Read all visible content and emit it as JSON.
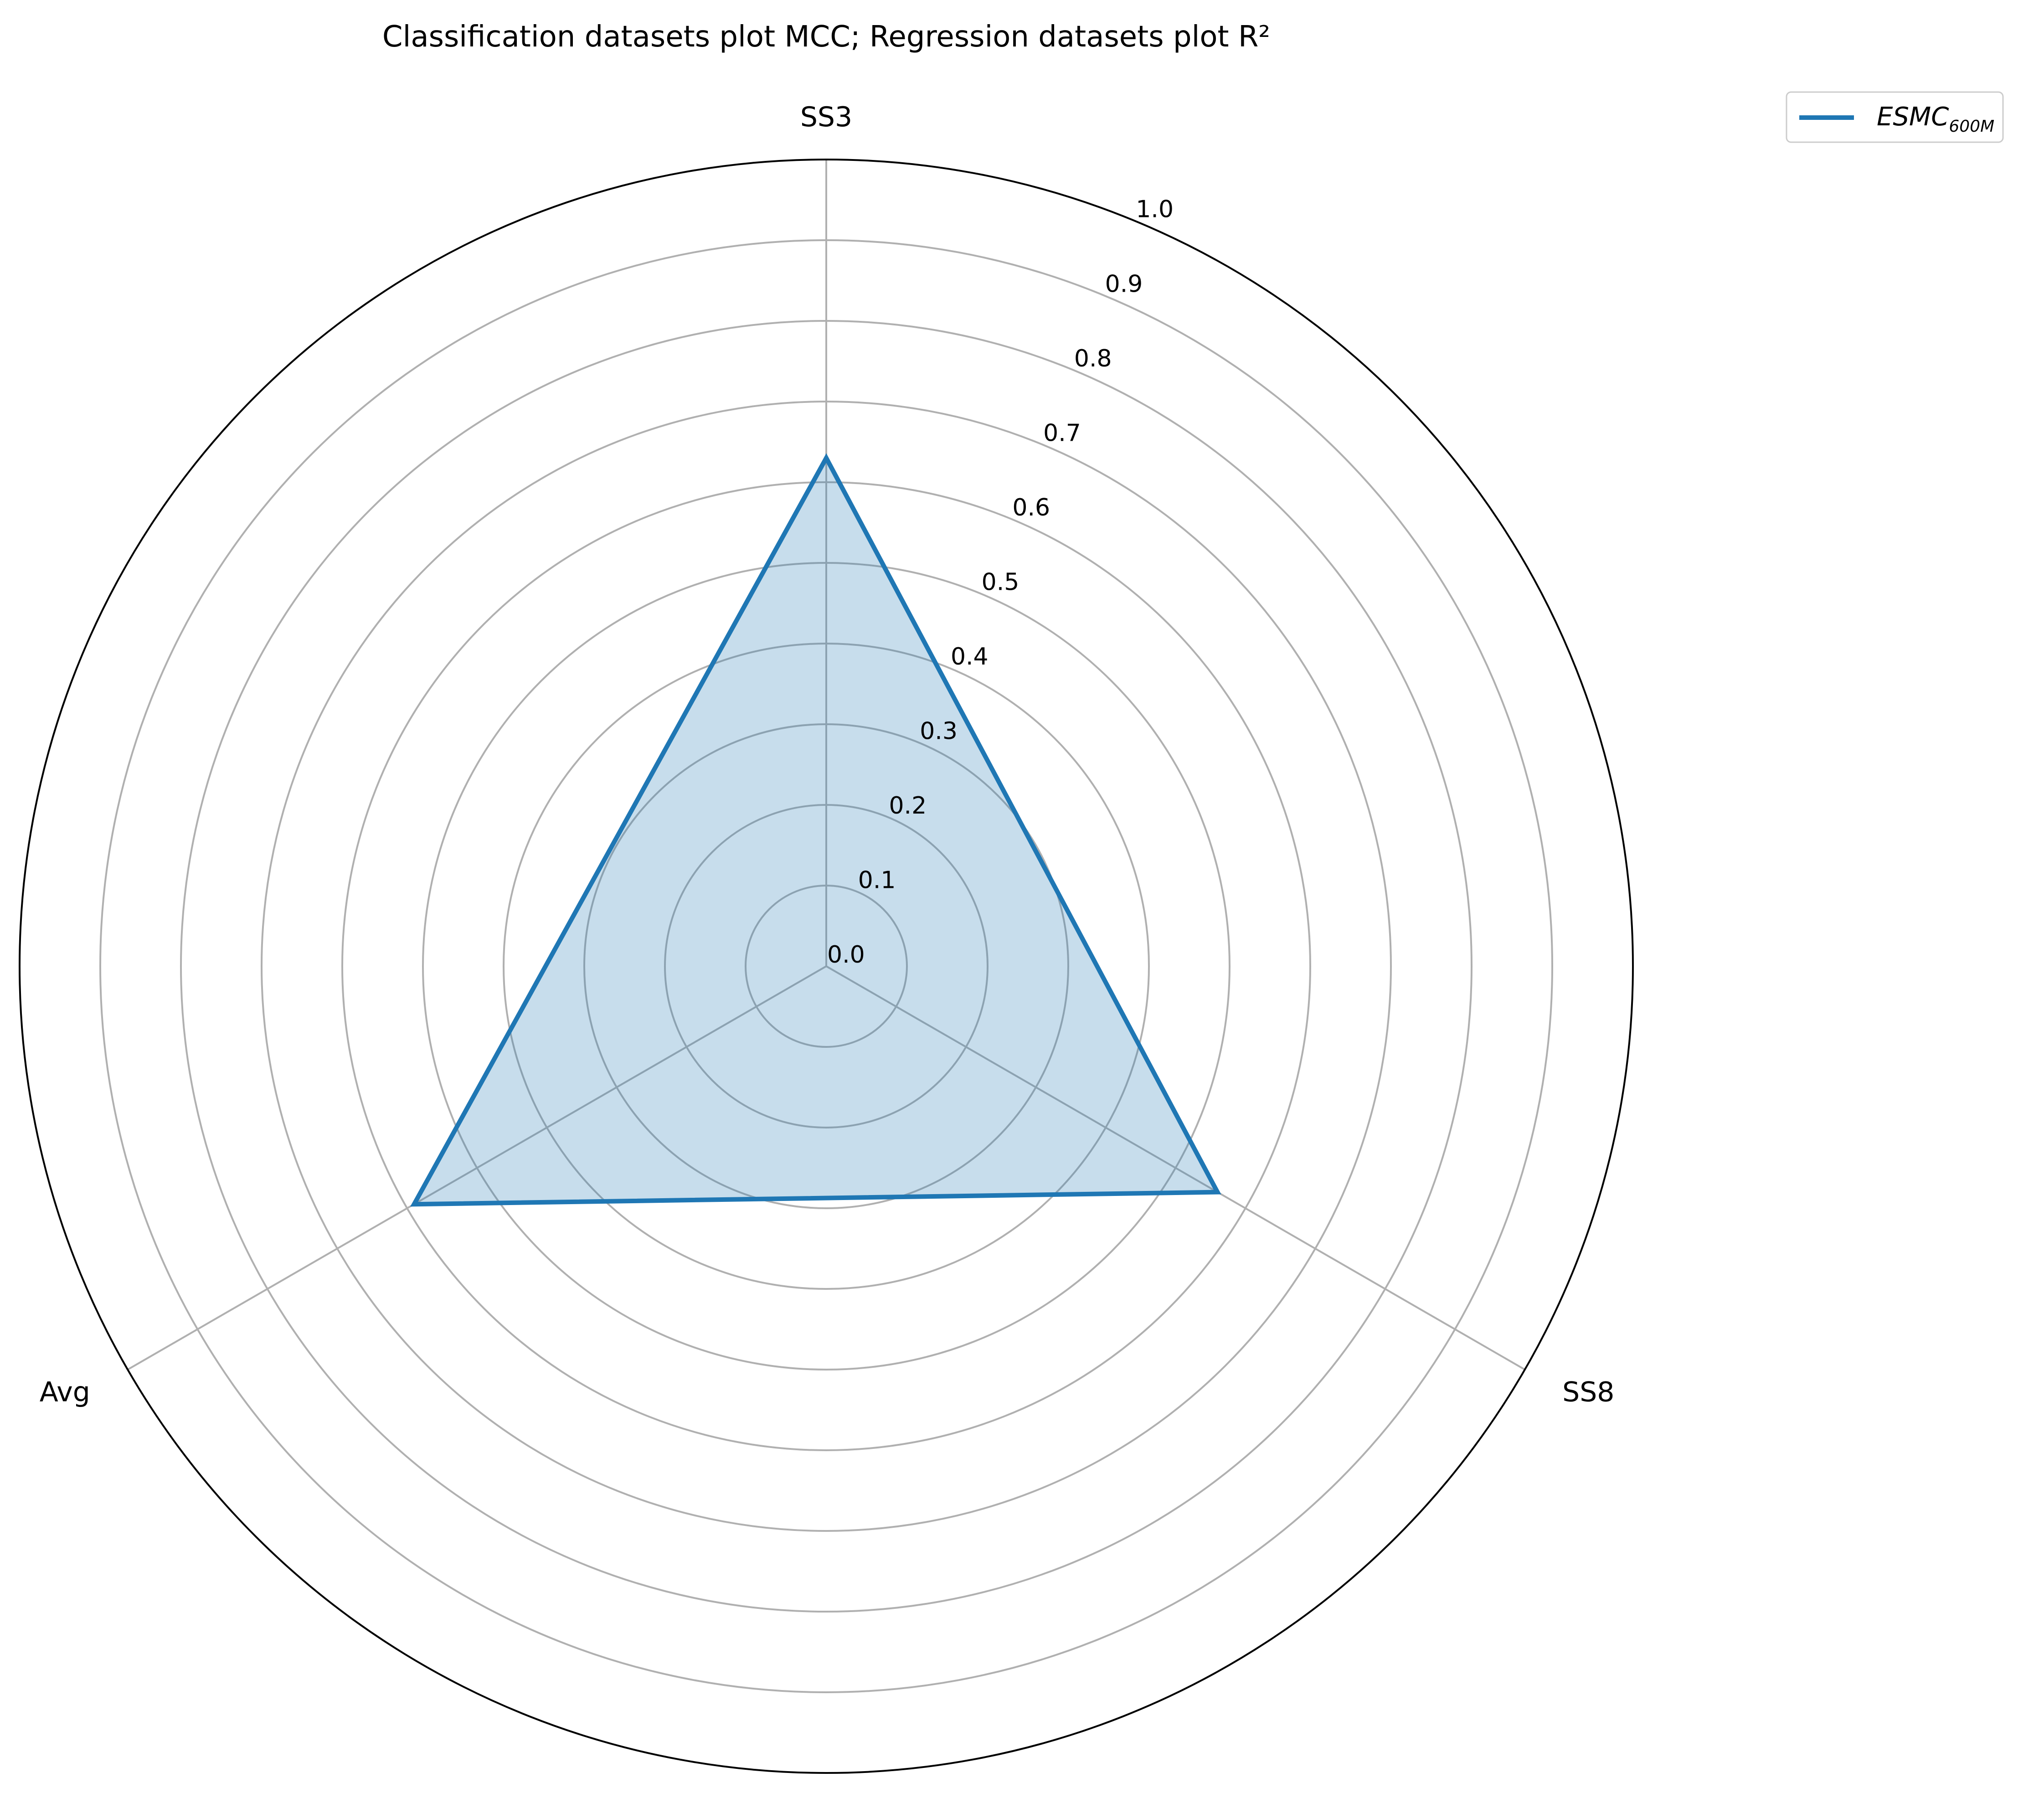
{
  "chart_data": {
    "type": "radar",
    "title": "Classification datasets plot MCC; Regression datasets plot R²",
    "axes": [
      "SS3",
      "SS8",
      "Avg"
    ],
    "r_ticks": [
      "0.0",
      "0.1",
      "0.2",
      "0.3",
      "0.4",
      "0.5",
      "0.6",
      "0.7",
      "0.8",
      "0.9",
      "1.0"
    ],
    "r_tick_values": [
      0.0,
      0.1,
      0.2,
      0.3,
      0.4,
      0.5,
      0.6,
      0.7,
      0.8,
      0.9,
      1.0
    ],
    "rlim": [
      0,
      1.0
    ],
    "grid": true,
    "legend_position": "top-right",
    "series": [
      {
        "name_base": "ESMC",
        "name_subscript": "600M",
        "values": [
          0.63,
          0.56,
          0.59
        ],
        "color": "#1f77b4",
        "fill_opacity": 0.25
      }
    ],
    "colors": {
      "grid": "#b0b0b0",
      "outer_ring": "#000000"
    }
  }
}
